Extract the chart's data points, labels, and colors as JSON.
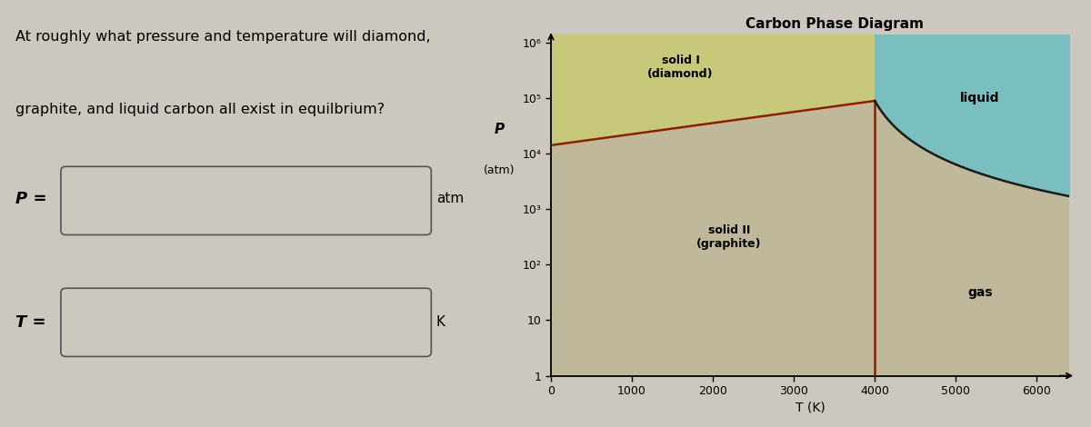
{
  "title": "Carbon Phase Diagram",
  "xlabel": "T (K)",
  "bg_color": "#ccc8c0",
  "diamond_color": "#c8c87a",
  "liquid_color": "#7abfbf",
  "gas_graphite_color": "#c0b89a",
  "boundary_color": "#8b2000",
  "liquid_gas_boundary_color": "#1a1a1a",
  "xlim": [
    0,
    6400
  ],
  "xticks": [
    0,
    1000,
    2000,
    3000,
    4000,
    5000,
    6000
  ],
  "ytick_labels": [
    "1",
    "10",
    "10²",
    "10³",
    "10⁴",
    "10⁵",
    "10⁶"
  ],
  "ytick_vals": [
    0,
    1,
    2,
    3,
    4,
    5,
    6
  ],
  "question_line1": "At roughly what pressure and temperature will diamond,",
  "question_line2": "graphite, and liquid carbon all exist in equilbrium?",
  "label_P": "P =",
  "label_T": "T =",
  "unit_P": "atm",
  "unit_T": "K",
  "triple_point_T": 4000,
  "triple_point_P_log": 4.95,
  "dg_start_P_log": 4.15,
  "dg_start_T": 0
}
